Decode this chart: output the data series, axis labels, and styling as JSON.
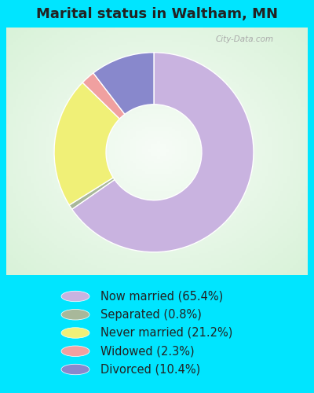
{
  "title": "Marital status in Waltham, MN",
  "slices": [
    65.4,
    0.8,
    21.2,
    2.3,
    10.4
  ],
  "labels": [
    "Now married (65.4%)",
    "Separated (0.8%)",
    "Never married (21.2%)",
    "Widowed (2.3%)",
    "Divorced (10.4%)"
  ],
  "colors": [
    "#c9b3e0",
    "#a8b89a",
    "#f0f077",
    "#f0a0a0",
    "#8888cc"
  ],
  "bg_cyan": "#00e5ff",
  "bg_chart_corner_tl": "#c8e8c8",
  "bg_chart_corner_tr": "#c8e8e8",
  "bg_chart_center": "#e8f8e8",
  "title_fontsize": 13,
  "legend_fontsize": 10.5,
  "watermark": "City-Data.com",
  "startangle": 90,
  "donut_width": 0.52
}
